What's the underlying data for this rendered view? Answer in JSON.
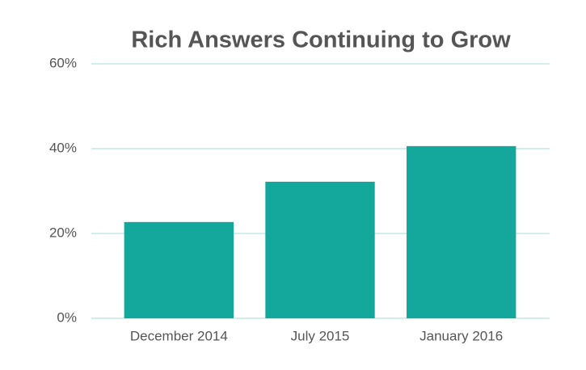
{
  "chart_data": {
    "type": "bar",
    "title": "Rich Answers Continuing to Grow",
    "categories": [
      "December 2014",
      "July 2015",
      "January 2016"
    ],
    "values": [
      22.7,
      32.2,
      40.6
    ],
    "color": "#14a89c",
    "ylim": [
      0,
      60
    ],
    "yticks": [
      {
        "value": 0,
        "label": "0%"
      },
      {
        "value": 20,
        "label": "20%"
      },
      {
        "value": 40,
        "label": "40%"
      },
      {
        "value": 60,
        "label": "60%"
      }
    ],
    "grid": true
  }
}
